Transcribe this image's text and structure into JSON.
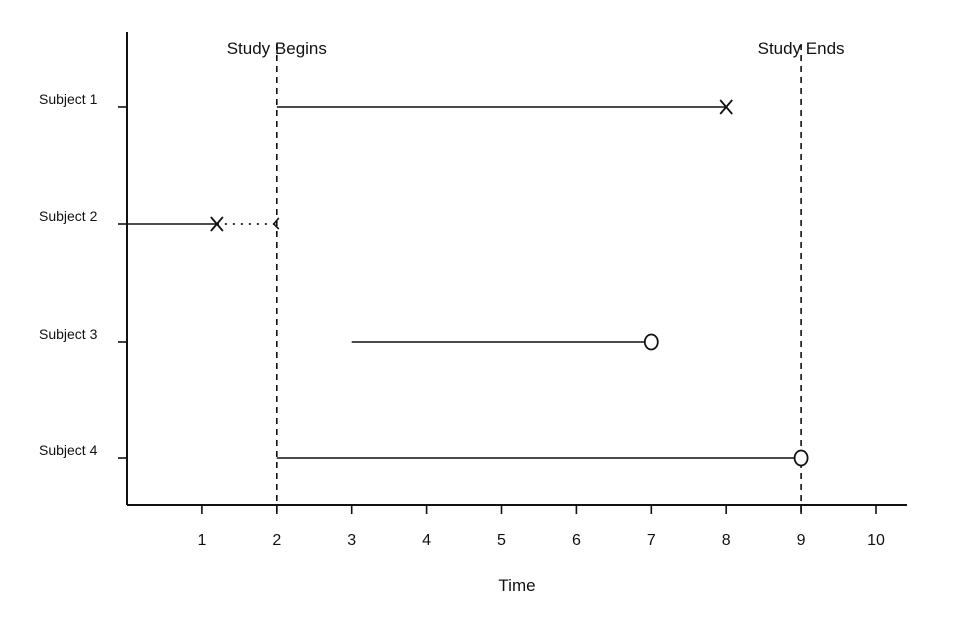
{
  "chart_data": {
    "type": "timeline",
    "xlabel": "Time",
    "ylabel": "",
    "title": "",
    "xlim": [
      0,
      10.4
    ],
    "xticks": [
      1,
      2,
      3,
      4,
      5,
      6,
      7,
      8,
      9,
      10
    ],
    "grid": false,
    "legend": "none",
    "reference_lines": [
      {
        "x": 2,
        "label": "Study Begins",
        "style": "dashed"
      },
      {
        "x": 9,
        "label": "Study Ends",
        "style": "dashed"
      }
    ],
    "subjects": [
      {
        "label": "Subject 1",
        "segments": [
          {
            "start": 2,
            "end": 8,
            "style": "solid"
          }
        ],
        "end_marker": "x",
        "end_marker_at": 8
      },
      {
        "label": "Subject 2",
        "segments": [
          {
            "start": 0,
            "end": 1.2,
            "style": "solid"
          },
          {
            "start": 1.2,
            "end": 2,
            "style": "dotted"
          }
        ],
        "end_marker": "x",
        "end_marker_at": 1.2,
        "entry_marker": "<",
        "entry_marker_at": 2
      },
      {
        "label": "Subject 3",
        "segments": [
          {
            "start": 3,
            "end": 7,
            "style": "solid"
          }
        ],
        "end_marker": "o",
        "end_marker_at": 7
      },
      {
        "label": "Subject 4",
        "segments": [
          {
            "start": 2,
            "end": 9,
            "style": "solid"
          }
        ],
        "end_marker": "o",
        "end_marker_at": 9
      }
    ],
    "colors": {
      "ink": "#111111",
      "background": "#ffffff"
    }
  }
}
